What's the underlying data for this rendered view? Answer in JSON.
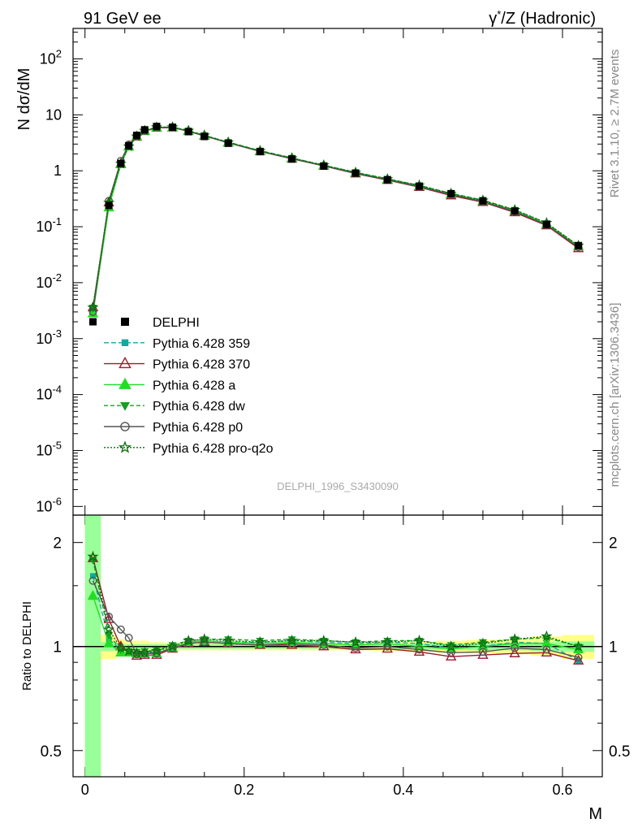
{
  "header": {
    "left": "91 GeV ee",
    "right_sym": "γ",
    "right_sup": "*",
    "right_rest": "/Z (Hadronic)"
  },
  "side": {
    "rivet": "Rivet 3.1.10, ≥ 2.7M events",
    "mcplots": "mcplots.cern.ch [arXiv:1306.3436]"
  },
  "analysis_id": "DELPHI_1996_S3430090",
  "chart_data": [
    {
      "type": "line",
      "panel": "main",
      "xlabel": "M",
      "ylabel": "N dσ/dM",
      "yscale": "log",
      "xlim": [
        -0.015,
        0.65
      ],
      "ylim": [
        7e-07,
        350
      ],
      "x_ticks": [
        "0",
        "0.2",
        "0.4",
        "0.6"
      ],
      "y_ticks": [
        {
          "base": "10",
          "exp": "-6"
        },
        {
          "base": "10",
          "exp": "-5"
        },
        {
          "base": "10",
          "exp": "-4"
        },
        {
          "base": "10",
          "exp": "-3"
        },
        {
          "base": "10",
          "exp": "-2"
        },
        {
          "base": "10",
          "exp": "-1"
        },
        {
          "base": "1",
          "exp": ""
        },
        {
          "base": "10",
          "exp": ""
        },
        {
          "base": "10",
          "exp": "2"
        }
      ],
      "legend_position": "lower-left",
      "x": [
        0.01,
        0.03,
        0.045,
        0.055,
        0.065,
        0.075,
        0.09,
        0.11,
        0.13,
        0.15,
        0.18,
        0.22,
        0.26,
        0.3,
        0.34,
        0.38,
        0.42,
        0.46,
        0.5,
        0.54,
        0.58,
        0.62
      ],
      "data": {
        "name": "DELPHI",
        "values": [
          0.002,
          0.24,
          1.35,
          2.8,
          4.3,
          5.4,
          6.2,
          6.0,
          5.0,
          4.1,
          3.1,
          2.2,
          1.62,
          1.21,
          0.91,
          0.69,
          0.53,
          0.39,
          0.29,
          0.19,
          0.11,
          0.046
        ]
      },
      "series": [
        {
          "name": "Pythia 6.428 359",
          "color": "#13a89e",
          "dash": "6,3",
          "marker": "square",
          "values": [
            0.0032,
            0.25,
            1.32,
            2.72,
            4.15,
            5.2,
            5.95,
            5.95,
            5.15,
            4.25,
            3.2,
            2.26,
            1.68,
            1.25,
            0.93,
            0.71,
            0.54,
            0.385,
            0.29,
            0.195,
            0.112,
            0.044
          ]
        },
        {
          "name": "Pythia 6.428 370",
          "color": "#9b1b30",
          "dash": "",
          "marker": "triangle-open",
          "values": [
            0.0036,
            0.27,
            1.33,
            2.7,
            4.05,
            5.1,
            5.85,
            5.9,
            5.1,
            4.2,
            3.17,
            2.22,
            1.64,
            1.22,
            0.89,
            0.68,
            0.51,
            0.36,
            0.275,
            0.18,
            0.105,
            0.041
          ]
        },
        {
          "name": "Pythia 6.428 a",
          "color": "#22dd22",
          "dash": "",
          "marker": "triangle",
          "values": [
            0.0028,
            0.22,
            1.3,
            2.7,
            4.1,
            5.15,
            5.9,
            5.95,
            5.15,
            4.25,
            3.2,
            2.25,
            1.67,
            1.24,
            0.92,
            0.7,
            0.53,
            0.385,
            0.29,
            0.195,
            0.112,
            0.045
          ]
        },
        {
          "name": "Pythia 6.428 dw",
          "color": "#16a020",
          "dash": "5,3",
          "marker": "triangle-down",
          "values": [
            0.0036,
            0.26,
            1.32,
            2.73,
            4.15,
            5.25,
            6.05,
            6.05,
            5.2,
            4.3,
            3.25,
            2.29,
            1.7,
            1.26,
            0.94,
            0.72,
            0.55,
            0.395,
            0.3,
            0.2,
            0.116,
            0.046
          ]
        },
        {
          "name": "Pythia 6.428 p0",
          "color": "#555555",
          "dash": "",
          "marker": "circle-open",
          "values": [
            0.003,
            0.29,
            1.5,
            2.95,
            4.1,
            5.15,
            5.9,
            5.95,
            5.1,
            4.2,
            3.17,
            2.22,
            1.65,
            1.22,
            0.9,
            0.69,
            0.52,
            0.375,
            0.28,
            0.188,
            0.108,
            0.043
          ]
        },
        {
          "name": "Pythia 6.428 pro-q2o",
          "color": "#0b6e0b",
          "dash": "2,2",
          "marker": "star-open",
          "values": [
            0.0036,
            0.27,
            1.34,
            2.72,
            4.1,
            5.2,
            6.0,
            6.0,
            5.2,
            4.3,
            3.22,
            2.27,
            1.68,
            1.26,
            0.93,
            0.71,
            0.55,
            0.39,
            0.295,
            0.2,
            0.117,
            0.046
          ]
        }
      ]
    },
    {
      "type": "line",
      "panel": "ratio",
      "xlabel": "M",
      "ylabel": "Ratio to DELPHI",
      "yscale": "log",
      "ylim": [
        0.42,
        2.4
      ],
      "y_ticks": [
        "0.5",
        "1",
        "2"
      ],
      "x_ticks": [
        "0",
        "0.2",
        "0.4",
        "0.6"
      ],
      "x_edges": [
        0.0,
        0.02,
        0.04,
        0.05,
        0.06,
        0.07,
        0.08,
        0.1,
        0.12,
        0.14,
        0.16,
        0.2,
        0.24,
        0.28,
        0.32,
        0.36,
        0.4,
        0.44,
        0.48,
        0.52,
        0.56,
        0.6,
        0.64
      ],
      "data_band_stat": [
        [
          0.4,
          2.4
        ],
        [
          0.97,
          1.03
        ],
        [
          0.98,
          1.02
        ],
        [
          0.985,
          1.015
        ],
        [
          0.985,
          1.015
        ],
        [
          0.985,
          1.015
        ],
        [
          0.985,
          1.015
        ],
        [
          0.985,
          1.015
        ],
        [
          0.985,
          1.015
        ],
        [
          0.985,
          1.015
        ],
        [
          0.985,
          1.015
        ],
        [
          0.985,
          1.015
        ],
        [
          0.985,
          1.015
        ],
        [
          0.985,
          1.015
        ],
        [
          0.985,
          1.015
        ],
        [
          0.98,
          1.02
        ],
        [
          0.98,
          1.02
        ],
        [
          0.98,
          1.02
        ],
        [
          0.975,
          1.025
        ],
        [
          0.975,
          1.025
        ],
        [
          0.97,
          1.03
        ],
        [
          0.965,
          1.035
        ]
      ],
      "data_band_total": [
        [
          0.4,
          2.4
        ],
        [
          0.92,
          1.08
        ],
        [
          0.95,
          1.05
        ],
        [
          0.96,
          1.04
        ],
        [
          0.96,
          1.04
        ],
        [
          0.96,
          1.04
        ],
        [
          0.97,
          1.03
        ],
        [
          0.975,
          1.025
        ],
        [
          0.975,
          1.025
        ],
        [
          0.975,
          1.025
        ],
        [
          0.975,
          1.025
        ],
        [
          0.975,
          1.025
        ],
        [
          0.975,
          1.025
        ],
        [
          0.975,
          1.025
        ],
        [
          0.975,
          1.025
        ],
        [
          0.97,
          1.03
        ],
        [
          0.965,
          1.035
        ],
        [
          0.96,
          1.04
        ],
        [
          0.955,
          1.045
        ],
        [
          0.95,
          1.05
        ],
        [
          0.94,
          1.07
        ],
        [
          0.92,
          1.08
        ]
      ],
      "series": [
        {
          "name": "Pythia 6.428 359",
          "values": [
            1.6,
            1.05,
            0.98,
            0.97,
            0.965,
            0.965,
            0.96,
            0.99,
            1.03,
            1.04,
            1.03,
            1.03,
            1.04,
            1.03,
            1.02,
            1.03,
            1.02,
            0.99,
            1.0,
            1.03,
            1.02,
            0.91
          ]
        },
        {
          "name": "Pythia 6.428 370",
          "values": [
            1.8,
            1.2,
            1.0,
            0.96,
            0.94,
            0.945,
            0.945,
            0.985,
            1.02,
            1.03,
            1.02,
            1.01,
            1.01,
            1.0,
            0.98,
            0.985,
            0.965,
            0.935,
            0.945,
            0.955,
            0.96,
            0.91
          ]
        },
        {
          "name": "Pythia 6.428 a",
          "values": [
            1.4,
            1.02,
            0.96,
            0.96,
            0.955,
            0.955,
            0.955,
            0.99,
            1.03,
            1.04,
            1.03,
            1.02,
            1.03,
            1.02,
            1.01,
            1.02,
            1.0,
            0.985,
            1.0,
            1.02,
            1.02,
            0.98
          ]
        },
        {
          "name": "Pythia 6.428 dw",
          "values": [
            1.78,
            1.08,
            0.98,
            0.97,
            0.965,
            0.97,
            0.975,
            1.01,
            1.04,
            1.05,
            1.05,
            1.04,
            1.05,
            1.04,
            1.03,
            1.04,
            1.04,
            1.01,
            1.03,
            1.05,
            1.06,
            1.0
          ]
        },
        {
          "name": "Pythia 6.428 p0",
          "values": [
            1.55,
            1.22,
            1.12,
            1.06,
            0.95,
            0.955,
            0.955,
            0.99,
            1.02,
            1.03,
            1.02,
            1.01,
            1.02,
            1.01,
            0.99,
            1.0,
            0.98,
            0.96,
            0.965,
            0.99,
            0.98,
            0.93
          ]
        },
        {
          "name": "Pythia 6.428 pro-q2o",
          "values": [
            1.82,
            1.12,
            0.99,
            0.97,
            0.955,
            0.96,
            0.97,
            1.0,
            1.04,
            1.05,
            1.04,
            1.03,
            1.04,
            1.04,
            1.03,
            1.03,
            1.04,
            1.0,
            1.02,
            1.05,
            1.07,
            1.0
          ]
        }
      ]
    }
  ]
}
